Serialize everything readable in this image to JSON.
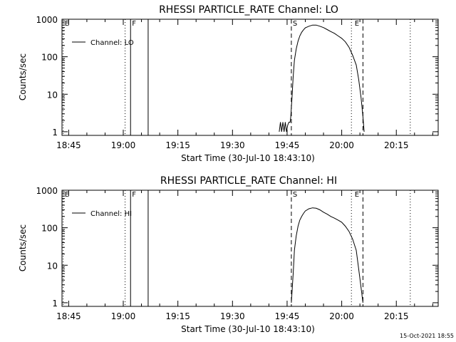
{
  "footer": {
    "timestamp": "15-Oct-2021 18:55"
  },
  "chart_data": [
    {
      "type": "line",
      "title": "RHESSI PARTICLE_RATE Channel: LO",
      "xlabel": "Start Time (30-Jul-10 18:43:10)",
      "ylabel": "Counts/sec",
      "y_scale": "log",
      "xlim": [
        "18:43:10",
        "20:26:30"
      ],
      "ylim": [
        0.8,
        1000
      ],
      "x_ticks": [
        "18:45",
        "19:00",
        "19:15",
        "19:30",
        "19:45",
        "20:00",
        "20:15"
      ],
      "y_ticks": [
        "1",
        "10",
        "100",
        "1000"
      ],
      "legend": {
        "position": "top-left",
        "entries": [
          "Channel: LO"
        ]
      },
      "series": [
        {
          "name": "Channel: LO",
          "x": [
            "19:42:50",
            "19:43:10",
            "19:43:30",
            "19:43:50",
            "19:44:10",
            "19:44:30",
            "19:44:50",
            "19:45:10",
            "19:45:30",
            "19:45:50",
            "19:46:00",
            "19:46:20",
            "19:46:40",
            "19:47:00",
            "19:47:30",
            "19:48:00",
            "19:48:30",
            "19:49:00",
            "19:49:30",
            "19:50:00",
            "19:51:00",
            "19:52:00",
            "19:53:00",
            "19:54:00",
            "19:55:00",
            "19:56:00",
            "19:57:00",
            "19:58:00",
            "19:59:00",
            "20:00:00",
            "20:01:00",
            "20:02:00",
            "20:03:00",
            "20:04:00",
            "20:04:40",
            "20:05:20",
            "20:05:50",
            "20:06:10"
          ],
          "values": [
            1,
            1.8,
            1,
            1.8,
            1,
            1.8,
            1,
            1.5,
            1.8,
            1.8,
            2.5,
            8,
            30,
            80,
            160,
            260,
            360,
            450,
            520,
            590,
            650,
            700,
            700,
            650,
            600,
            530,
            470,
            420,
            360,
            310,
            250,
            180,
            110,
            60,
            25,
            8,
            2.5,
            1
          ]
        }
      ],
      "annotations": [
        {
          "label": "E",
          "x": "18:43:30",
          "style": "dotted"
        },
        {
          "label": "",
          "x": "19:00:30",
          "style": "dotted"
        },
        {
          "label": "F",
          "x": "19:02:00",
          "style": "solid"
        },
        {
          "label": "",
          "x": "19:06:50",
          "style": "solid"
        },
        {
          "label": "S",
          "x": "19:46:10",
          "style": "dashed"
        },
        {
          "label": "",
          "x": "20:02:40",
          "style": "dotted"
        },
        {
          "label": "E",
          "x": "20:03:10",
          "style": "none"
        },
        {
          "label": "",
          "x": "20:05:50",
          "style": "dashed"
        },
        {
          "label": "",
          "x": "20:18:50",
          "style": "dotted"
        }
      ]
    },
    {
      "type": "line",
      "title": "RHESSI PARTICLE_RATE Channel: HI",
      "xlabel": "Start Time (30-Jul-10 18:43:10)",
      "ylabel": "Counts/sec",
      "y_scale": "log",
      "xlim": [
        "18:43:10",
        "20:26:30"
      ],
      "ylim": [
        0.8,
        1000
      ],
      "x_ticks": [
        "18:45",
        "19:00",
        "19:15",
        "19:30",
        "19:45",
        "20:00",
        "20:15"
      ],
      "y_ticks": [
        "1",
        "10",
        "100",
        "1000"
      ],
      "legend": {
        "position": "top-left",
        "entries": [
          "Channel: HI"
        ]
      },
      "series": [
        {
          "name": "Channel: HI",
          "x": [
            "19:46:10",
            "19:46:40",
            "19:47:00",
            "19:47:30",
            "19:48:00",
            "19:48:30",
            "19:49:00",
            "19:49:30",
            "19:50:00",
            "19:51:00",
            "19:52:00",
            "19:53:00",
            "19:54:00",
            "19:55:00",
            "19:56:00",
            "19:57:00",
            "19:58:00",
            "19:59:00",
            "20:00:00",
            "20:01:00",
            "20:02:00",
            "20:03:00",
            "20:04:00",
            "20:04:40",
            "20:05:20",
            "20:05:50"
          ],
          "values": [
            1,
            6,
            25,
            60,
            110,
            160,
            200,
            240,
            280,
            320,
            340,
            330,
            300,
            260,
            230,
            200,
            180,
            160,
            140,
            110,
            80,
            50,
            25,
            8,
            2.5,
            1
          ]
        }
      ],
      "annotations": [
        {
          "label": "E",
          "x": "18:43:30",
          "style": "dotted"
        },
        {
          "label": "",
          "x": "19:00:30",
          "style": "dotted"
        },
        {
          "label": "F",
          "x": "19:02:00",
          "style": "solid"
        },
        {
          "label": "",
          "x": "19:06:50",
          "style": "solid"
        },
        {
          "label": "S",
          "x": "19:46:10",
          "style": "dashed"
        },
        {
          "label": "",
          "x": "20:02:40",
          "style": "dotted"
        },
        {
          "label": "E",
          "x": "20:03:10",
          "style": "none"
        },
        {
          "label": "",
          "x": "20:05:50",
          "style": "dashed"
        },
        {
          "label": "",
          "x": "20:18:50",
          "style": "dotted"
        }
      ]
    }
  ]
}
